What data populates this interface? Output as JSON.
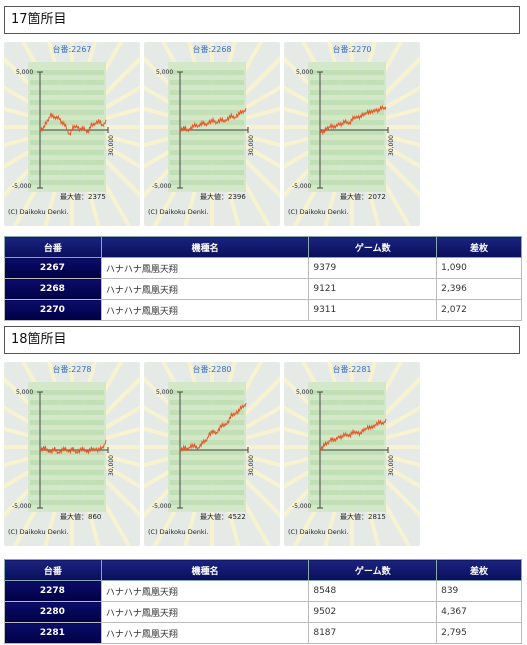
{
  "sections": [
    {
      "title": "17箇所目",
      "graphs": [
        {
          "unit": "台番:2267",
          "max_label": "最大値：2375",
          "copyright": "(C) Daikoku Denki."
        },
        {
          "unit": "台番:2268",
          "max_label": "最大値：2396",
          "copyright": "(C) Daikoku Denki."
        },
        {
          "unit": "台番:2270",
          "max_label": "最大値：2072",
          "copyright": "(C) Daikoku Denki."
        }
      ],
      "table": {
        "headers": [
          "台番",
          "機種名",
          "ゲーム数",
          "差枚"
        ],
        "rows": [
          [
            "2267",
            "ハナハナ鳳凰天翔",
            "9379",
            "1,090"
          ],
          [
            "2268",
            "ハナハナ鳳凰天翔",
            "9121",
            "2,396"
          ],
          [
            "2270",
            "ハナハナ鳳凰天翔",
            "9311",
            "2,072"
          ]
        ]
      }
    },
    {
      "title": "18箇所目",
      "graphs": [
        {
          "unit": "台番:2278",
          "max_label": "最大値：860",
          "copyright": "(C) Daikoku Denki."
        },
        {
          "unit": "台番:2280",
          "max_label": "最大値：4522",
          "copyright": "(C) Daikoku Denki."
        },
        {
          "unit": "台番:2281",
          "max_label": "最大値：2815",
          "copyright": "(C) Daikoku Denki."
        }
      ],
      "table": {
        "headers": [
          "台番",
          "機種名",
          "ゲーム数",
          "差枚"
        ],
        "rows": [
          [
            "2278",
            "ハナハナ鳳凰天翔",
            "8548",
            "839"
          ],
          [
            "2280",
            "ハナハナ鳳凰天翔",
            "9502",
            "4,367"
          ],
          [
            "2281",
            "ハナハナ鳳凰天翔",
            "8187",
            "2,795"
          ]
        ]
      }
    }
  ],
  "axis": {
    "y_top": "5,000",
    "y_bottom": "-5,000",
    "x_end": "30,000"
  },
  "colors": {
    "line": "#e8542a",
    "table_header": "#0a0f5c",
    "num_cell": "#000044",
    "unit_text": "#3a6fb5"
  }
}
